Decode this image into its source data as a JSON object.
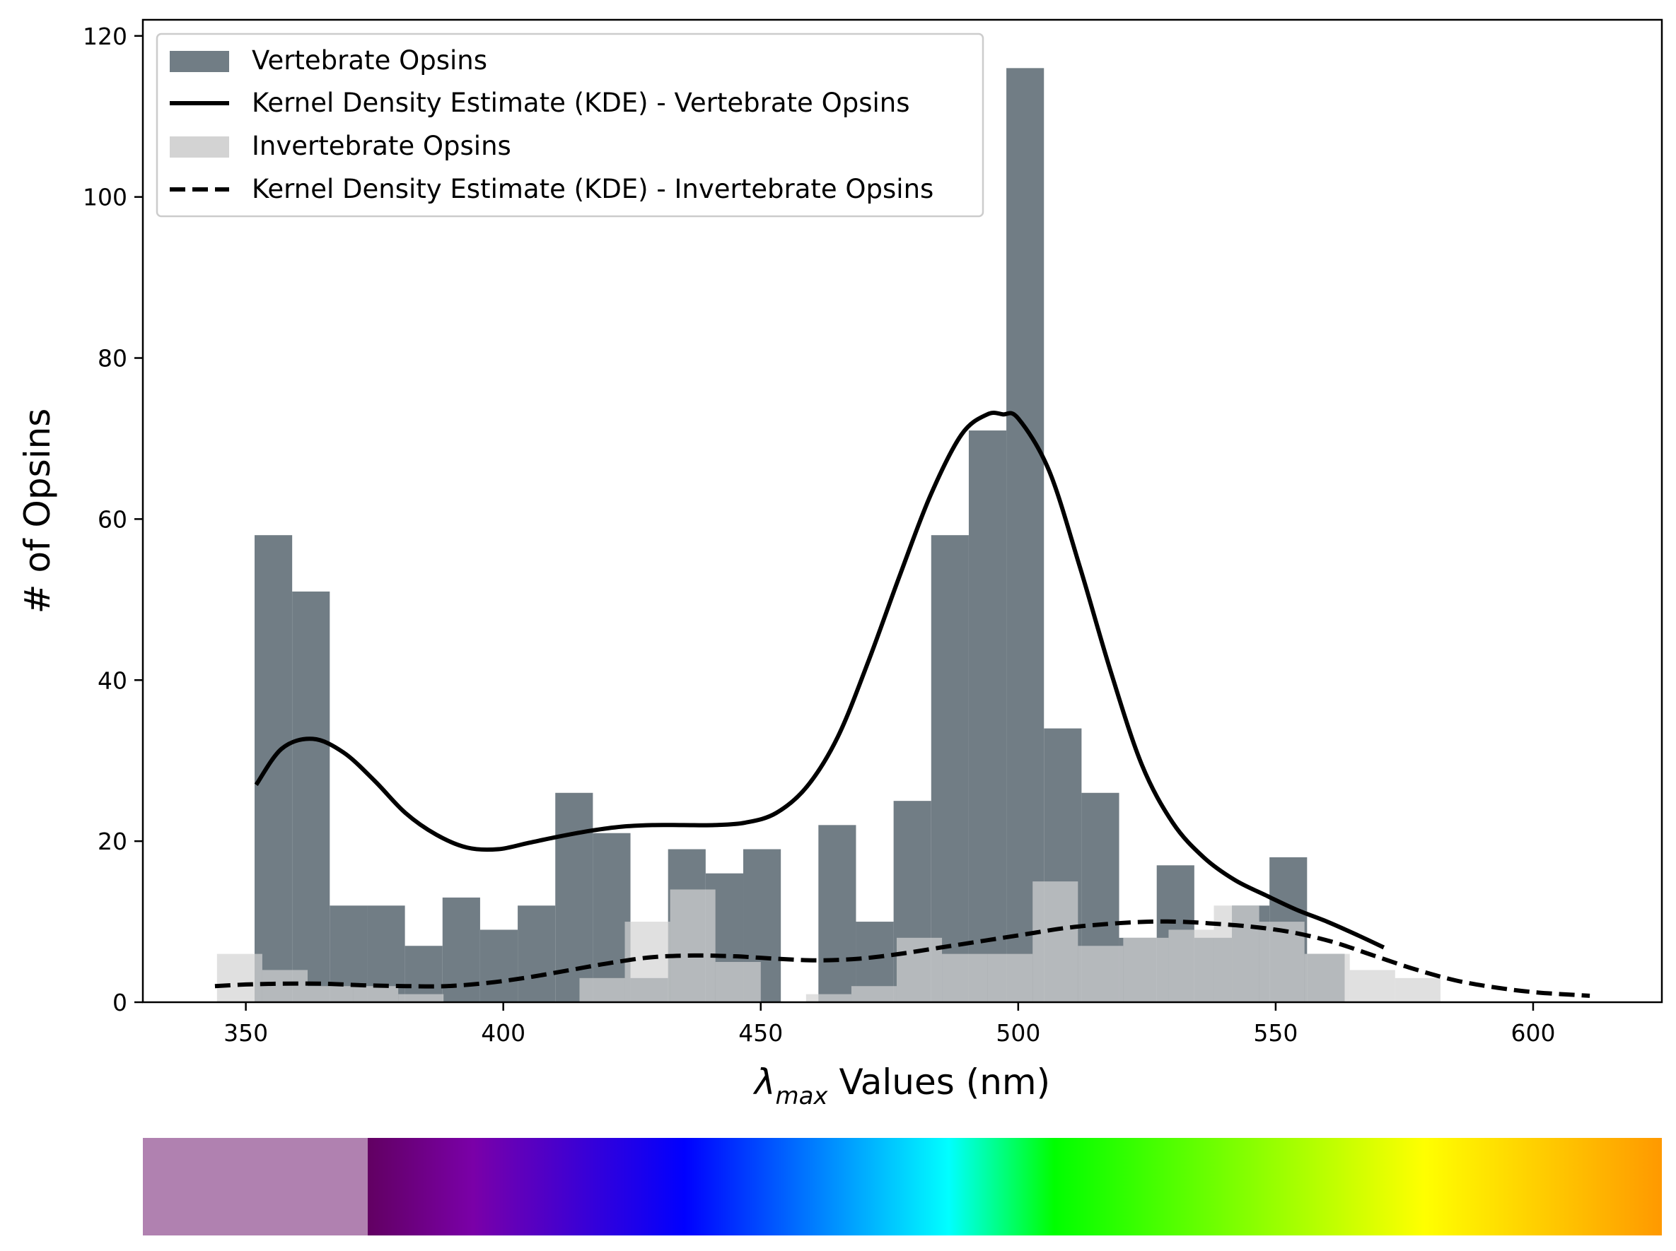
{
  "chart_data": {
    "type": "bar",
    "title": "",
    "xlabel_symbol": "λ",
    "xlabel_subscript": "max",
    "xlabel_rest": " Values (nm)",
    "ylabel": "# of Opsins",
    "xlim": [
      330,
      625
    ],
    "ylim": [
      0,
      122
    ],
    "xticks": [
      350,
      400,
      450,
      500,
      550,
      600
    ],
    "yticks": [
      0,
      20,
      40,
      60,
      80,
      100,
      120
    ],
    "grid": false,
    "legend_position": "top-left",
    "series": [
      {
        "name": "Vertebrate Opsins",
        "kind": "histogram",
        "color": "#717d85",
        "bin_edges": [
          351.7,
          359,
          366.3,
          373.6,
          380.9,
          388.2,
          395.5,
          402.8,
          410.1,
          417.4,
          424.7,
          432,
          439.3,
          446.6,
          453.9,
          461.2,
          468.5,
          475.8,
          483.1,
          490.4,
          497.7,
          505,
          512.3,
          519.6,
          526.9,
          534.2,
          541.5,
          548.8,
          556.1,
          563.4
        ],
        "counts": [
          58,
          51,
          12,
          12,
          7,
          13,
          9,
          12,
          26,
          21,
          3,
          19,
          16,
          19,
          0,
          22,
          10,
          25,
          58,
          71,
          116,
          34,
          26,
          8,
          17,
          8,
          12,
          18,
          6
        ]
      },
      {
        "name": "Kernel Density Estimate (KDE) - Vertebrate Opsins",
        "kind": "kde",
        "color": "#000000",
        "line_style": "solid",
        "x": [
          352,
          357,
          363,
          369,
          375,
          381,
          387,
          393,
          399,
          405,
          411,
          417,
          423,
          429,
          435,
          441,
          447,
          453,
          459,
          465,
          471,
          477,
          483,
          489,
          494,
          497,
          500,
          506,
          512,
          518,
          524,
          530,
          536,
          542,
          548,
          554,
          560,
          566,
          571
        ],
        "y": [
          27,
          31.5,
          32.7,
          31,
          27.5,
          23.5,
          20.8,
          19.2,
          19,
          19.8,
          20.6,
          21.3,
          21.8,
          22,
          22,
          22,
          22.3,
          23.5,
          26.8,
          33,
          42.5,
          53,
          63,
          70.5,
          73,
          73,
          72.5,
          66,
          54,
          41,
          29.5,
          22.3,
          18,
          15.2,
          13.3,
          11.5,
          10,
          8.3,
          6.8
        ]
      },
      {
        "name": "Invertebrate Opsins",
        "kind": "histogram",
        "color": "#d3d3d3",
        "bin_edges": [
          344.4,
          353.2,
          362,
          370.8,
          379.6,
          388.4,
          397.2,
          406,
          414.8,
          423.6,
          432.4,
          441.2,
          450,
          458.8,
          467.6,
          476.4,
          485.2,
          494,
          502.8,
          511.6,
          520.4,
          529.2,
          538,
          546.8,
          555.6,
          564.4,
          573.2,
          582
        ],
        "counts": [
          6,
          4,
          2,
          2,
          1,
          0,
          0,
          0,
          3,
          10,
          14,
          5,
          0,
          1,
          2,
          8,
          6,
          6,
          15,
          7,
          8,
          9,
          12,
          10,
          6,
          4,
          3
        ]
      },
      {
        "name": "Kernel Density Estimate (KDE) - Invertebrate Opsins",
        "kind": "kde",
        "color": "#000000",
        "line_style": "dashed",
        "x": [
          344,
          350,
          357,
          365,
          373,
          381,
          389,
          397,
          405,
          413,
          421,
          429,
          437,
          445,
          453,
          461,
          469,
          477,
          485,
          493,
          501,
          509,
          517,
          525,
          531,
          537,
          545,
          553,
          561,
          569,
          577,
          585,
          593,
          601,
          611
        ],
        "y": [
          2,
          2.2,
          2.3,
          2.3,
          2.1,
          2,
          2,
          2.4,
          3.1,
          4,
          4.9,
          5.6,
          5.8,
          5.7,
          5.4,
          5.2,
          5.4,
          6,
          6.8,
          7.6,
          8.4,
          9.2,
          9.7,
          10,
          10,
          9.8,
          9.4,
          8.7,
          7.5,
          5.8,
          4.1,
          2.7,
          1.8,
          1.2,
          0.8
        ]
      }
    ],
    "spectrum_bar": {
      "uv_color": "#b081b0",
      "gradient_stops": [
        {
          "nm": 380,
          "color": "#620062"
        },
        {
          "nm": 400,
          "color": "#7a00a8"
        },
        {
          "nm": 440,
          "color": "#0000ff"
        },
        {
          "nm": 490,
          "color": "#00ffff"
        },
        {
          "nm": 510,
          "color": "#00ff00"
        },
        {
          "nm": 580,
          "color": "#ffff00"
        },
        {
          "nm": 625,
          "color": "#ff9900"
        }
      ]
    }
  }
}
